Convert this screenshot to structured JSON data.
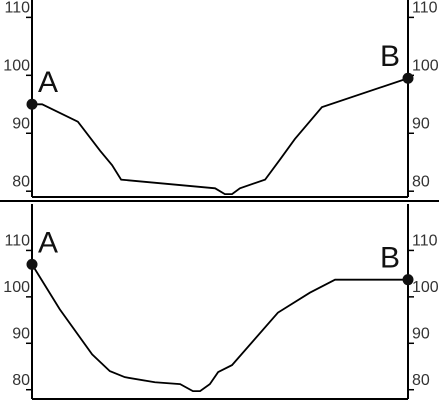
{
  "chart_data": [
    {
      "type": "line",
      "color": "#000000",
      "xlim": [
        0,
        100
      ],
      "ylim": [
        79,
        113
      ],
      "yticks": [
        80,
        90,
        100,
        110
      ],
      "annotations": [
        "A",
        "B"
      ],
      "x": [
        0,
        2.7,
        12.2,
        18.1,
        21.3,
        23.7,
        48.7,
        51.3,
        53.2,
        55.3,
        62,
        66,
        69.9,
        77.1,
        100
      ],
      "values": [
        95,
        95,
        92,
        87,
        84.5,
        82,
        80.5,
        79.5,
        79.5,
        80.5,
        82,
        85.5,
        89,
        94.5,
        99.5
      ]
    },
    {
      "type": "line",
      "color": "#000000",
      "xlim": [
        0,
        100
      ],
      "ylim": [
        78,
        120
      ],
      "yticks": [
        80,
        90,
        100,
        110
      ],
      "annotations": [
        "A",
        "B"
      ],
      "x": [
        0,
        7.4,
        16,
        20.7,
        24.7,
        32.7,
        39.4,
        42.8,
        44.7,
        47.3,
        49.5,
        53.2,
        65.4,
        73.9,
        80.6,
        100
      ],
      "values": [
        107,
        97.3,
        87.6,
        84,
        82.7,
        81.6,
        81.2,
        79.7,
        79.7,
        81.2,
        83.8,
        85.3,
        96.6,
        100.9,
        103.7,
        103.7
      ]
    }
  ]
}
